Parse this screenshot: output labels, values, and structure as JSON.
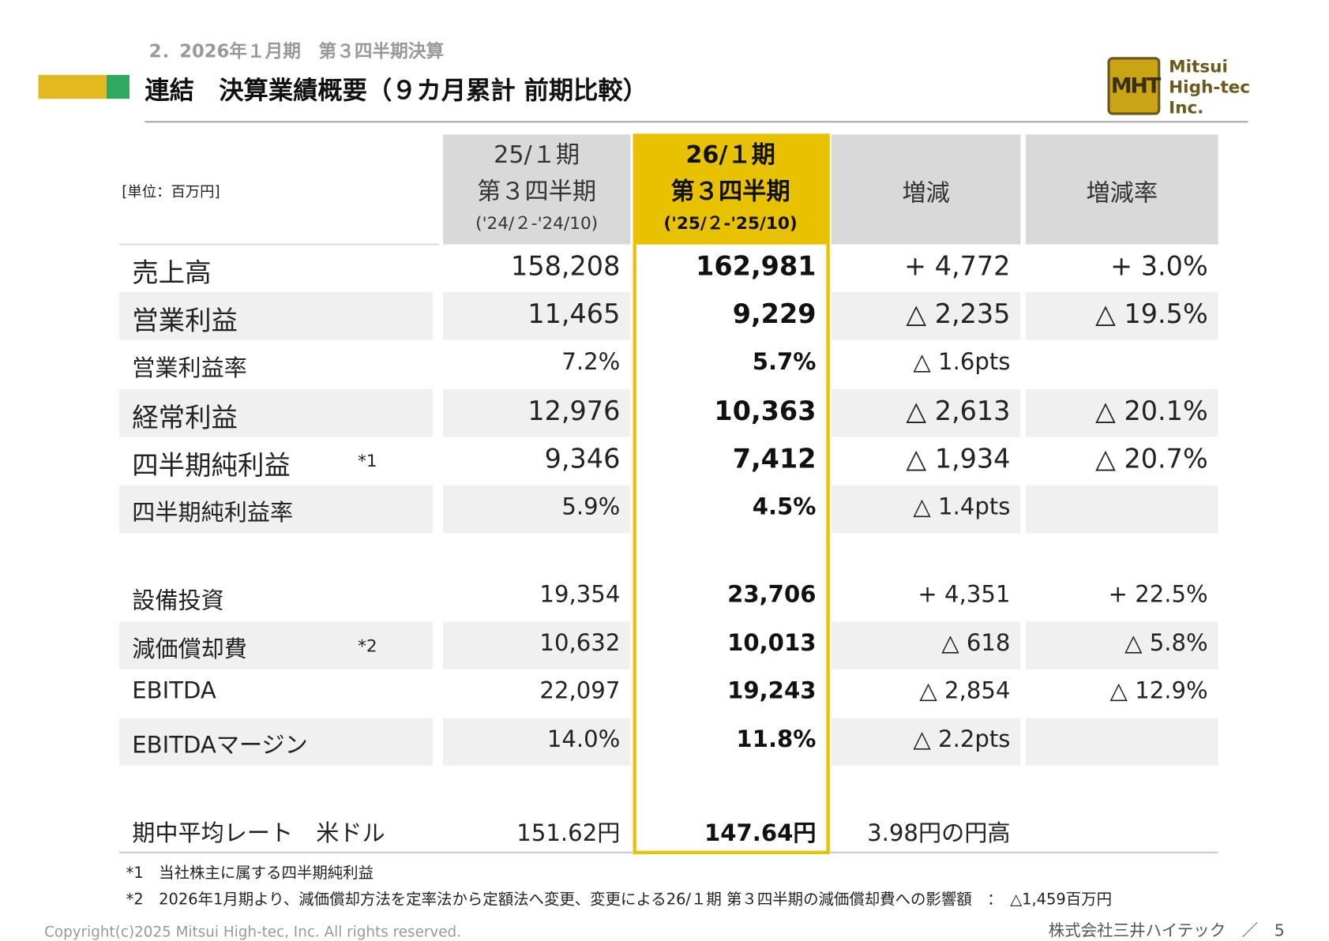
{
  "header": {
    "section": "2．2026年１月期　第３四半期決算",
    "title": "連結　決算業績概要（９カ月累計 前期比較）",
    "logo_mark": "MHT",
    "logo_text": [
      "Mitsui",
      "High-tec",
      "Inc."
    ]
  },
  "table": {
    "unit": "[単位：百万円]",
    "columns": [
      [
        "25/１期",
        "第３四半期",
        "('24/２-'24/10)"
      ],
      [
        "26/１期",
        "第３四半期",
        "('25/２-'25/10)"
      ],
      [
        "増減"
      ],
      [
        "増減率"
      ]
    ],
    "rows": [
      {
        "label": "売上高",
        "prev": "158,208",
        "curr": "162,981",
        "change": "+ 4,772",
        "rate": "+ 3.0%"
      },
      {
        "label": "営業利益",
        "prev": "11,465",
        "curr": "9,229",
        "change": "△ 2,235",
        "rate": "△ 19.5%"
      },
      {
        "label": "営業利益率",
        "prev": "7.2%",
        "curr": "5.7%",
        "change": "△ 1.6pts"
      },
      {
        "label": "経常利益",
        "prev": "12,976",
        "curr": "10,363",
        "change": "△ 2,613",
        "rate": "△ 20.1%"
      },
      {
        "label": "四半期純利益",
        "note": "*1",
        "prev": "9,346",
        "curr": "7,412",
        "change": "△ 1,934",
        "rate": "△ 20.7%"
      },
      {
        "label": "四半期純利益率",
        "prev": "5.9%",
        "curr": "4.5%",
        "change": "△ 1.4pts"
      },
      {
        "label": "設備投資",
        "prev": "19,354",
        "curr": "23,706",
        "change": "+ 4,351",
        "rate": "+ 22.5%"
      },
      {
        "label": "減価償却費",
        "note": "*2",
        "prev": "10,632",
        "curr": "10,013",
        "change": "△ 618",
        "rate": "△ 5.8%"
      },
      {
        "label": "EBITDA",
        "prev": "22,097",
        "curr": "19,243",
        "change": "△ 2,854",
        "rate": "△ 12.9%"
      },
      {
        "label": "EBITDAマージン",
        "prev": "14.0%",
        "curr": "11.8%",
        "change": "△ 2.2pts"
      },
      {
        "label": "期中平均レート　米ドル",
        "prev": "151.62円",
        "curr": "147.64円",
        "change": "3.98円の円高"
      }
    ]
  },
  "footnotes": [
    "*1　当社株主に属する四半期純利益",
    "*2　2026年1月期より、減価償却方法を定率法から定額法へ変更、変更による26/１期 第３四半期の減価償却費への影響額　：　△1,459百万円"
  ],
  "footer": {
    "copyright": "Copyright(c)2025 Mitsui High-tec, Inc. All rights reserved.",
    "company": "株式会社三井ハイテック　／　5"
  }
}
